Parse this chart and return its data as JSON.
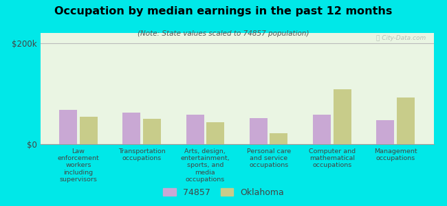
{
  "title": "Occupation by median earnings in the past 12 months",
  "subtitle": "(Note: State values scaled to 74857 population)",
  "categories": [
    "Law\nenforcement\nworkers\nincluding\nsupervisors",
    "Transportation\noccupations",
    "Arts, design,\nentertainment,\nsports, and\nmedia\noccupations",
    "Personal care\nand service\noccupations",
    "Computer and\nmathematical\noccupations",
    "Management\noccupations"
  ],
  "values_74857": [
    68000,
    62000,
    58000,
    52000,
    58000,
    48000
  ],
  "values_oklahoma": [
    55000,
    50000,
    44000,
    22000,
    108000,
    93000
  ],
  "ylim": [
    0,
    220000
  ],
  "yticks": [
    0,
    200000
  ],
  "ytick_labels": [
    "$0",
    "$200k"
  ],
  "color_74857": "#c9a8d4",
  "color_oklahoma": "#c8cc8a",
  "background_color": "#00e8e8",
  "legend_label_74857": "74857",
  "legend_label_oklahoma": "Oklahoma",
  "watermark": "ⓘ City-Data.com",
  "bar_width": 0.28
}
